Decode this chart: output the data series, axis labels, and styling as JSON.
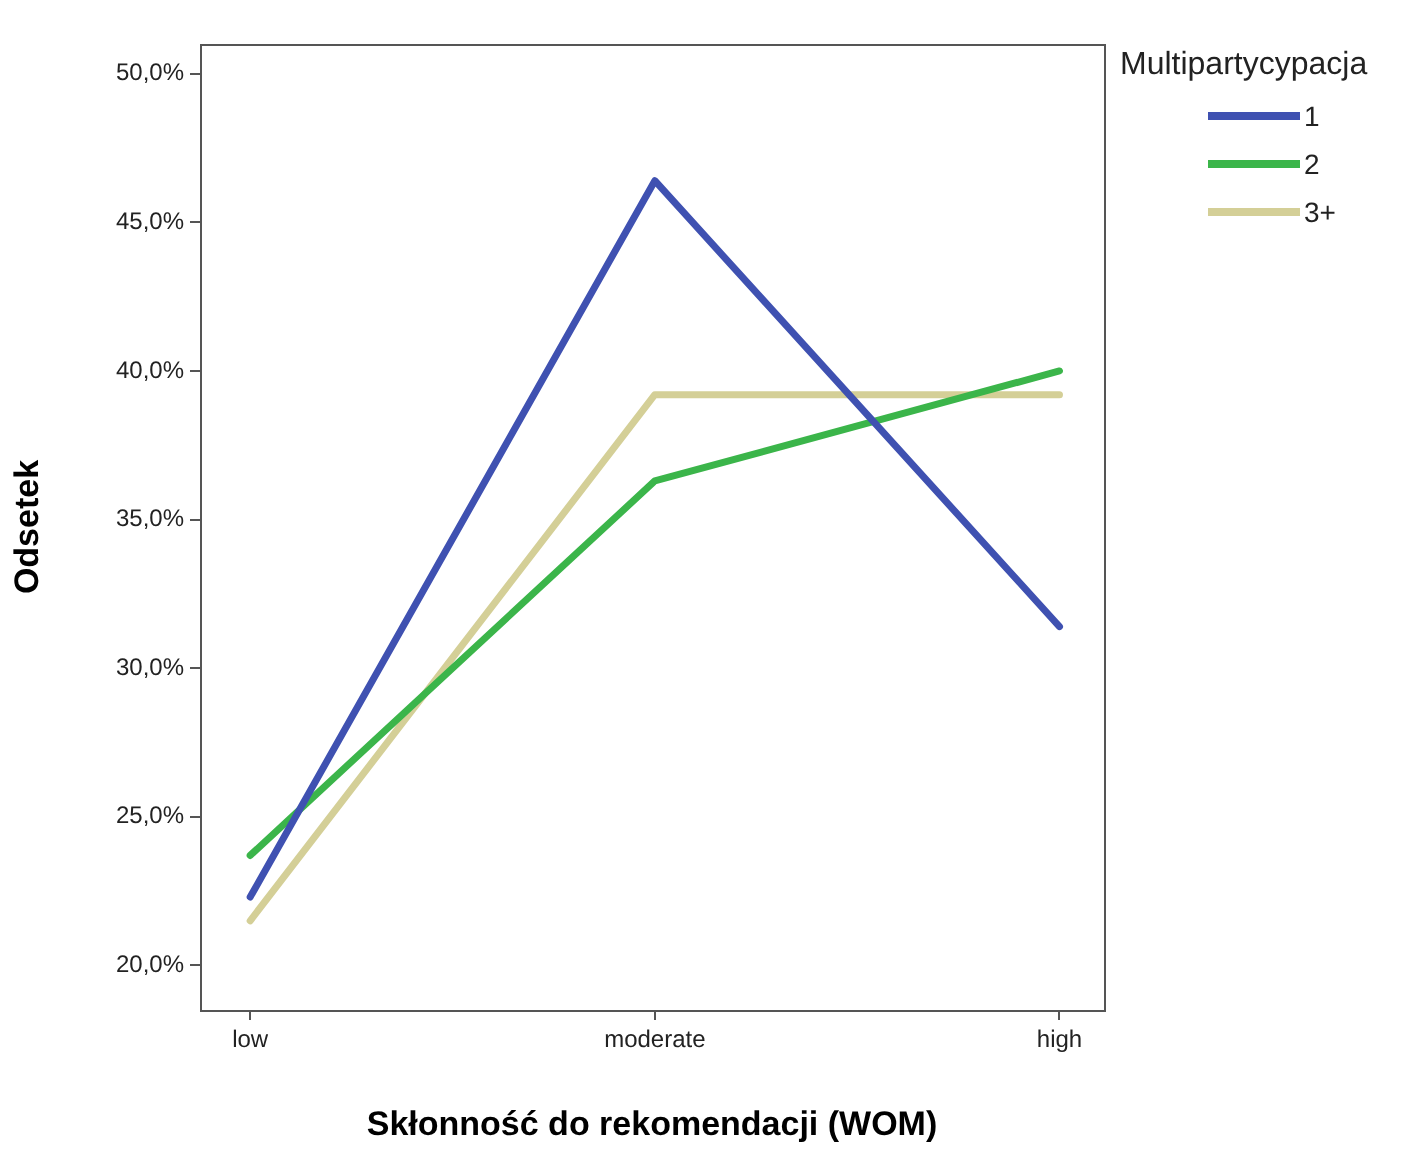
{
  "chart_data": {
    "type": "line",
    "xlabel": "Skłonność do rekomendacji (WOM)",
    "ylabel": "Odsetek",
    "legend_title": "Multipartycypacja",
    "legend": "top right",
    "grid": false,
    "marker": "none",
    "line_style": "solid",
    "categories": [
      "low",
      "moderate",
      "high"
    ],
    "ylim": [
      18.5,
      51
    ],
    "yticks": [
      {
        "value": 20,
        "label": "20,0%"
      },
      {
        "value": 25,
        "label": "25,0%"
      },
      {
        "value": 30,
        "label": "30,0%"
      },
      {
        "value": 35,
        "label": "35,0%"
      },
      {
        "value": 40,
        "label": "40,0%"
      },
      {
        "value": 45,
        "label": "45,0%"
      },
      {
        "value": 50,
        "label": "50,0%"
      }
    ],
    "series": [
      {
        "name": "1",
        "color": "#3f51b1",
        "values": [
          22.3,
          46.4,
          31.4
        ]
      },
      {
        "name": "2",
        "color": "#3bb54a",
        "values": [
          23.7,
          36.3,
          40.0
        ]
      },
      {
        "name": "3+",
        "color": "#d4cf97",
        "values": [
          21.5,
          39.2,
          39.2
        ]
      }
    ]
  }
}
